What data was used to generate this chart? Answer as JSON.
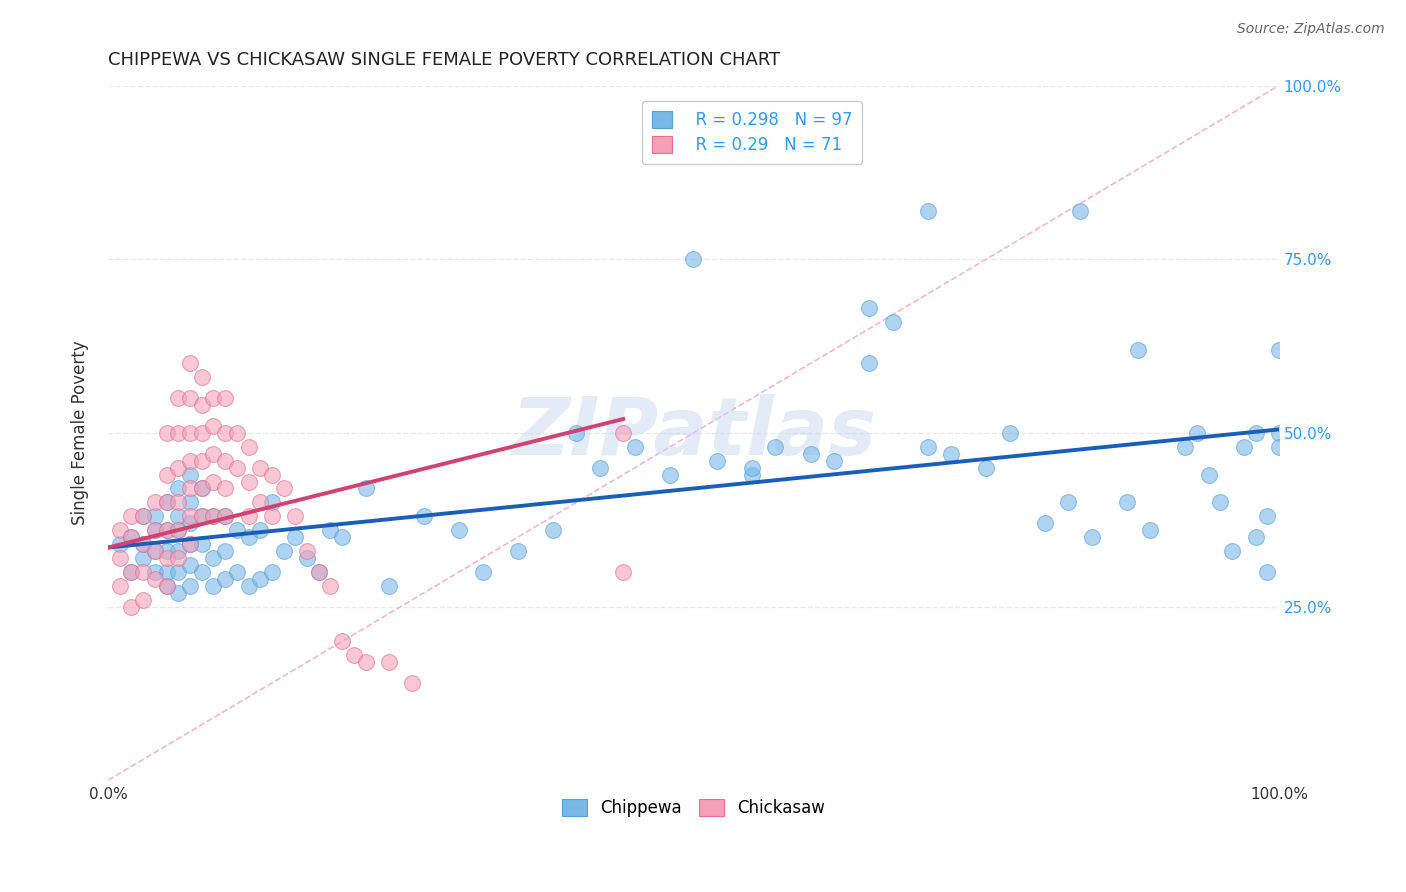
{
  "title": "CHIPPEWA VS CHICKASAW SINGLE FEMALE POVERTY CORRELATION CHART",
  "source": "Source: ZipAtlas.com",
  "ylabel": "Single Female Poverty",
  "watermark": "ZIPatlas",
  "chippewa_R": 0.298,
  "chippewa_N": 97,
  "chickasaw_R": 0.29,
  "chickasaw_N": 71,
  "chippewa_color": "#7ab8e8",
  "chickasaw_color": "#f4a0b8",
  "chippewa_edge_color": "#5a9fd4",
  "chickasaw_edge_color": "#e07090",
  "chippewa_line_color": "#1a5eb8",
  "chickasaw_line_color": "#d44070",
  "diagonal_color": "#cccccc",
  "background_color": "#ffffff",
  "grid_color": "#e8e8e8",
  "right_tick_color": "#3399ff",
  "ytick_labels": [
    "25.0%",
    "50.0%",
    "75.0%",
    "100.0%"
  ],
  "ytick_vals": [
    0.25,
    0.5,
    0.75,
    1.0
  ],
  "xtick_labels": [
    "0.0%",
    "",
    "",
    "",
    "",
    "100.0%"
  ],
  "xtick_vals": [
    0.0,
    0.2,
    0.4,
    0.6,
    0.8,
    1.0
  ],
  "xlim": [
    0.0,
    1.0
  ],
  "ylim": [
    0.0,
    1.0
  ],
  "chippewa_x": [
    0.01,
    0.02,
    0.02,
    0.03,
    0.03,
    0.03,
    0.04,
    0.04,
    0.04,
    0.04,
    0.05,
    0.05,
    0.05,
    0.05,
    0.05,
    0.06,
    0.06,
    0.06,
    0.06,
    0.06,
    0.06,
    0.07,
    0.07,
    0.07,
    0.07,
    0.07,
    0.07,
    0.08,
    0.08,
    0.08,
    0.08,
    0.09,
    0.09,
    0.09,
    0.1,
    0.1,
    0.1,
    0.11,
    0.11,
    0.12,
    0.12,
    0.13,
    0.13,
    0.14,
    0.14,
    0.15,
    0.16,
    0.17,
    0.18,
    0.19,
    0.2,
    0.22,
    0.24,
    0.27,
    0.3,
    0.32,
    0.35,
    0.38,
    0.4,
    0.42,
    0.45,
    0.48,
    0.5,
    0.52,
    0.55,
    0.57,
    0.6,
    0.62,
    0.65,
    0.67,
    0.7,
    0.72,
    0.75,
    0.77,
    0.8,
    0.82,
    0.84,
    0.87,
    0.89,
    0.92,
    0.93,
    0.94,
    0.95,
    0.96,
    0.97,
    0.98,
    0.98,
    0.99,
    0.99,
    1.0,
    1.0,
    1.0,
    0.55,
    0.65,
    0.7,
    0.83,
    0.88
  ],
  "chippewa_y": [
    0.34,
    0.35,
    0.3,
    0.32,
    0.34,
    0.38,
    0.3,
    0.33,
    0.36,
    0.38,
    0.28,
    0.3,
    0.33,
    0.36,
    0.4,
    0.27,
    0.3,
    0.33,
    0.36,
    0.38,
    0.42,
    0.28,
    0.31,
    0.34,
    0.37,
    0.4,
    0.44,
    0.3,
    0.34,
    0.38,
    0.42,
    0.28,
    0.32,
    0.38,
    0.29,
    0.33,
    0.38,
    0.3,
    0.36,
    0.28,
    0.35,
    0.29,
    0.36,
    0.3,
    0.4,
    0.33,
    0.35,
    0.32,
    0.3,
    0.36,
    0.35,
    0.42,
    0.28,
    0.38,
    0.36,
    0.3,
    0.33,
    0.36,
    0.5,
    0.45,
    0.48,
    0.44,
    0.75,
    0.46,
    0.44,
    0.48,
    0.47,
    0.46,
    0.68,
    0.66,
    0.48,
    0.47,
    0.45,
    0.5,
    0.37,
    0.4,
    0.35,
    0.4,
    0.36,
    0.48,
    0.5,
    0.44,
    0.4,
    0.33,
    0.48,
    0.5,
    0.35,
    0.3,
    0.38,
    0.5,
    0.48,
    0.62,
    0.45,
    0.6,
    0.82,
    0.82,
    0.62
  ],
  "chickasaw_x": [
    0.01,
    0.01,
    0.01,
    0.02,
    0.02,
    0.02,
    0.02,
    0.03,
    0.03,
    0.03,
    0.03,
    0.04,
    0.04,
    0.04,
    0.04,
    0.05,
    0.05,
    0.05,
    0.05,
    0.05,
    0.05,
    0.06,
    0.06,
    0.06,
    0.06,
    0.06,
    0.06,
    0.07,
    0.07,
    0.07,
    0.07,
    0.07,
    0.07,
    0.07,
    0.08,
    0.08,
    0.08,
    0.08,
    0.08,
    0.08,
    0.09,
    0.09,
    0.09,
    0.09,
    0.09,
    0.1,
    0.1,
    0.1,
    0.1,
    0.1,
    0.11,
    0.11,
    0.12,
    0.12,
    0.12,
    0.13,
    0.13,
    0.14,
    0.14,
    0.15,
    0.16,
    0.17,
    0.18,
    0.19,
    0.2,
    0.21,
    0.22,
    0.24,
    0.26,
    0.44,
    0.44
  ],
  "chickasaw_y": [
    0.36,
    0.32,
    0.28,
    0.38,
    0.35,
    0.3,
    0.25,
    0.38,
    0.34,
    0.3,
    0.26,
    0.4,
    0.36,
    0.33,
    0.29,
    0.5,
    0.44,
    0.4,
    0.36,
    0.32,
    0.28,
    0.55,
    0.5,
    0.45,
    0.4,
    0.36,
    0.32,
    0.6,
    0.55,
    0.5,
    0.46,
    0.42,
    0.38,
    0.34,
    0.58,
    0.54,
    0.5,
    0.46,
    0.42,
    0.38,
    0.55,
    0.51,
    0.47,
    0.43,
    0.38,
    0.55,
    0.5,
    0.46,
    0.42,
    0.38,
    0.5,
    0.45,
    0.48,
    0.43,
    0.38,
    0.45,
    0.4,
    0.44,
    0.38,
    0.42,
    0.38,
    0.33,
    0.3,
    0.28,
    0.2,
    0.18,
    0.17,
    0.17,
    0.14,
    0.5,
    0.3
  ],
  "chippewa_line_x": [
    0.0,
    1.0
  ],
  "chippewa_line_y": [
    0.335,
    0.505
  ],
  "chickasaw_line_x": [
    0.0,
    0.44
  ],
  "chickasaw_line_y": [
    0.335,
    0.52
  ]
}
